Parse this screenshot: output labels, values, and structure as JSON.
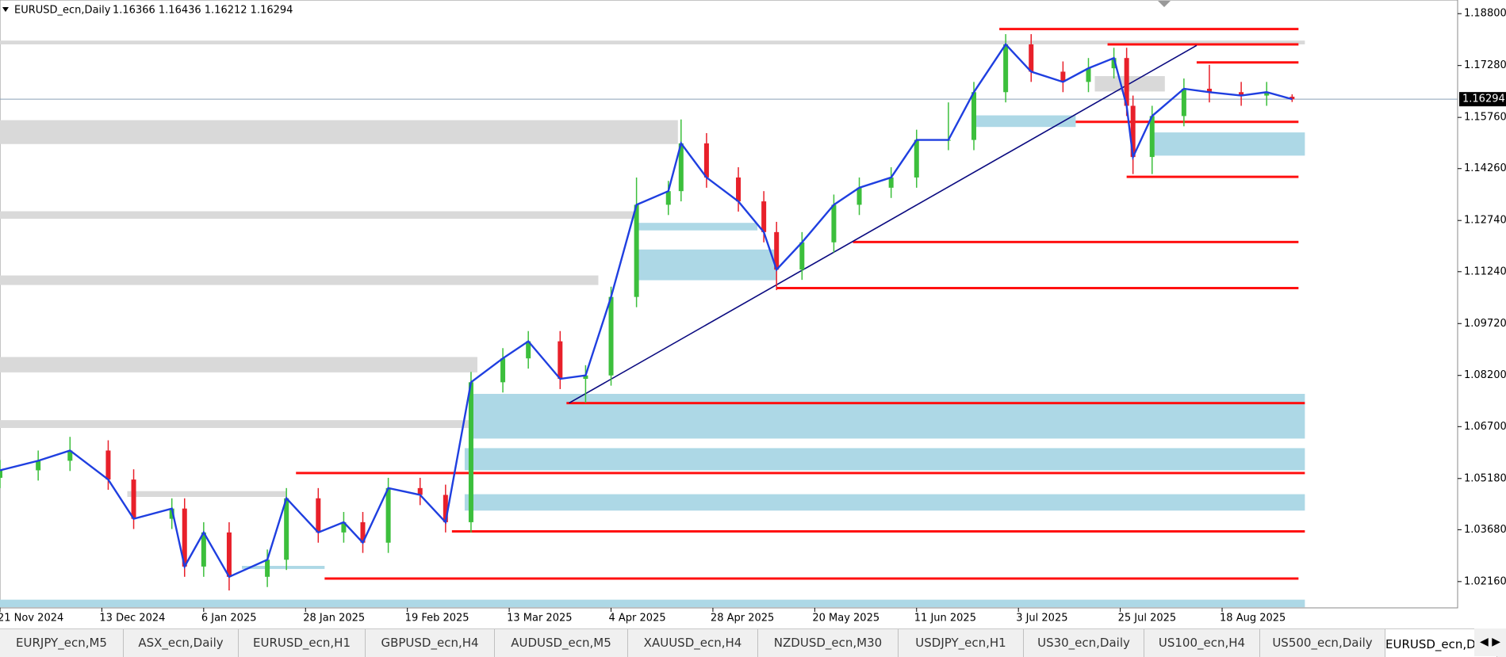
{
  "header": {
    "symbol": "EURUSD_ecn,Daily",
    "ohlc": "1.16366 1.16436 1.16212 1.16294"
  },
  "chart_data": {
    "type": "candlestick",
    "x": [
      0,
      6,
      11,
      17,
      21,
      27,
      29,
      32,
      36,
      42,
      45,
      50,
      54,
      57,
      61,
      66,
      70,
      74,
      79,
      83,
      88,
      92,
      96,
      100,
      105,
      107,
      111,
      116,
      120,
      122,
      126,
      131,
      135,
      140,
      144,
      149,
      153,
      158,
      162,
      167,
      171,
      175,
      177,
      178,
      181,
      186,
      190,
      195,
      199,
      203
    ],
    "open": [
      1.052,
      1.0542,
      1.057,
      1.06,
      1.0515,
      1.04,
      1.043,
      1.026,
      1.036,
      1.023,
      1.028,
      1.046,
      1.036,
      1.039,
      1.033,
      1.049,
      1.047,
      1.039,
      1.08,
      1.087,
      1.092,
      1.081,
      1.082,
      1.105,
      1.132,
      1.136,
      1.15,
      1.14,
      1.133,
      1.124,
      1.113,
      1.121,
      1.132,
      1.137,
      1.14,
      1.151,
      1.151,
      1.165,
      1.179,
      1.171,
      1.168,
      1.172,
      1.175,
      1.161,
      1.146,
      1.158,
      1.166,
      1.165,
      1.164,
      1.16366
    ],
    "high": [
      1.0572,
      1.06,
      1.064,
      1.063,
      1.0545,
      1.046,
      1.046,
      1.039,
      1.039,
      1.031,
      1.049,
      1.049,
      1.042,
      1.042,
      1.052,
      1.052,
      1.05,
      1.083,
      1.09,
      1.095,
      1.095,
      1.085,
      1.108,
      1.14,
      1.139,
      1.157,
      1.153,
      1.143,
      1.136,
      1.127,
      1.124,
      1.135,
      1.14,
      1.143,
      1.154,
      1.162,
      1.168,
      1.182,
      1.182,
      1.174,
      1.175,
      1.178,
      1.178,
      1.164,
      1.161,
      1.169,
      1.173,
      1.168,
      1.168,
      1.16436
    ],
    "low": [
      1.049,
      1.0512,
      1.054,
      1.0485,
      1.037,
      1.037,
      1.023,
      1.023,
      1.019,
      1.02,
      1.025,
      1.033,
      1.033,
      1.03,
      1.03,
      1.044,
      1.036,
      1.036,
      1.077,
      1.084,
      1.078,
      1.074,
      1.079,
      1.102,
      1.129,
      1.133,
      1.137,
      1.13,
      1.121,
      1.107,
      1.11,
      1.118,
      1.129,
      1.134,
      1.137,
      1.148,
      1.148,
      1.162,
      1.168,
      1.165,
      1.165,
      1.169,
      1.158,
      1.141,
      1.141,
      1.155,
      1.162,
      1.161,
      1.161,
      1.16212
    ],
    "close": [
      1.0542,
      1.057,
      1.06,
      1.0515,
      1.04,
      1.043,
      1.026,
      1.036,
      1.023,
      1.028,
      1.046,
      1.036,
      1.039,
      1.033,
      1.049,
      1.047,
      1.039,
      1.08,
      1.087,
      1.092,
      1.081,
      1.082,
      1.105,
      1.132,
      1.136,
      1.15,
      1.14,
      1.133,
      1.124,
      1.113,
      1.121,
      1.132,
      1.137,
      1.14,
      1.151,
      1.151,
      1.165,
      1.179,
      1.171,
      1.168,
      1.172,
      1.175,
      1.161,
      1.146,
      1.158,
      1.166,
      1.165,
      1.164,
      1.165,
      1.16294
    ],
    "up_color": "#3cbf3c",
    "down_color": "#e8202a",
    "line_color": "#1f3fe0",
    "xlim": [
      0,
      229
    ],
    "xticks": [
      {
        "value": 0,
        "label": "21 Nov 2024"
      },
      {
        "value": 16,
        "label": "13 Dec 2024"
      },
      {
        "value": 32,
        "label": "6 Jan 2025"
      },
      {
        "value": 48,
        "label": "28 Jan 2025"
      },
      {
        "value": 64,
        "label": "19 Feb 2025"
      },
      {
        "value": 80,
        "label": "13 Mar 2025"
      },
      {
        "value": 96,
        "label": "4 Apr 2025"
      },
      {
        "value": 112,
        "label": "28 Apr 2025"
      },
      {
        "value": 128,
        "label": "20 May 2025"
      },
      {
        "value": 144,
        "label": "11 Jun 2025"
      },
      {
        "value": 160,
        "label": "3 Jul 2025"
      },
      {
        "value": 176,
        "label": "25 Jul 2025"
      },
      {
        "value": 192,
        "label": "18 Aug 2025"
      }
    ],
    "ylim": [
      1.0139,
      1.192
    ],
    "yticks": [
      {
        "value": 1.188,
        "label": "1.18800"
      },
      {
        "value": 1.1728,
        "label": "1.17280"
      },
      {
        "value": 1.1576,
        "label": "1.15760"
      },
      {
        "value": 1.1426,
        "label": "1.14260"
      },
      {
        "value": 1.1274,
        "label": "1.12740"
      },
      {
        "value": 1.1124,
        "label": "1.11240"
      },
      {
        "value": 1.0972,
        "label": "1.09720"
      },
      {
        "value": 1.082,
        "label": "1.08200"
      },
      {
        "value": 1.067,
        "label": "1.06700"
      },
      {
        "value": 1.0518,
        "label": "1.05180"
      },
      {
        "value": 1.0368,
        "label": "1.03680"
      },
      {
        "value": 1.0216,
        "label": "1.02160"
      }
    ],
    "current_price": 1.16294,
    "levels": [
      {
        "price": 1.1835,
        "start": 157,
        "end": 204
      },
      {
        "price": 1.179,
        "start": 174,
        "end": 204
      },
      {
        "price": 1.1737,
        "start": 188,
        "end": 204
      },
      {
        "price": 1.1563,
        "start": 169,
        "end": 204
      },
      {
        "price": 1.1402,
        "start": 177,
        "end": 204
      },
      {
        "price": 1.1211,
        "start": 134,
        "end": 204
      },
      {
        "price": 1.1076,
        "start": 122,
        "end": 204
      },
      {
        "price": 1.0739,
        "start": 89,
        "end": 205
      },
      {
        "price": 1.0534,
        "start": 46.5,
        "end": 205
      },
      {
        "price": 1.0363,
        "start": 71,
        "end": 205
      },
      {
        "price": 1.0225,
        "start": 51,
        "end": 204
      }
    ],
    "level_color": "#ff1010",
    "demand_zones": [
      {
        "low": 1.0635,
        "high": 1.0766,
        "start": 74,
        "end": 205
      },
      {
        "low": 1.0542,
        "high": 1.0607,
        "start": 73,
        "end": 205
      },
      {
        "low": 1.0424,
        "high": 1.0472,
        "start": 73,
        "end": 205
      },
      {
        "low": 1.1099,
        "high": 1.1189,
        "start": 100,
        "end": 122
      },
      {
        "low": 1.1245,
        "high": 1.1267,
        "start": 100,
        "end": 119
      },
      {
        "low": 1.1464,
        "high": 1.1532,
        "start": 181,
        "end": 205
      },
      {
        "low": 1.1548,
        "high": 1.1582,
        "start": 153,
        "end": 169
      },
      {
        "low": 1.0253,
        "high": 1.0262,
        "start": 38,
        "end": 51
      },
      {
        "low": 1.0141,
        "high": 1.0163,
        "start": 0,
        "end": 205
      }
    ],
    "demand_color": "#add8e6",
    "supply_zones": [
      {
        "low": 1.1498,
        "high": 1.1568,
        "start": 0,
        "end": 106.5
      },
      {
        "low": 1.1279,
        "high": 1.1301,
        "start": 0,
        "end": 100
      },
      {
        "low": 1.1085,
        "high": 1.1113,
        "start": 0,
        "end": 94
      },
      {
        "low": 1.0829,
        "high": 1.0874,
        "start": 0,
        "end": 75
      },
      {
        "low": 1.0666,
        "high": 1.0689,
        "start": 0,
        "end": 74
      },
      {
        "low": 1.179,
        "high": 1.1801,
        "start": 0,
        "end": 205
      },
      {
        "low": 1.0464,
        "high": 1.0481,
        "start": 20,
        "end": 45
      },
      {
        "low": 1.1652,
        "high": 1.1697,
        "start": 172,
        "end": 183
      }
    ],
    "supply_color": "#d9d9d9",
    "trendline": {
      "x": [
        89.4,
        188
      ],
      "y": [
        1.0739,
        1.1787
      ],
      "color": "#0a0a80"
    }
  },
  "tabs": [
    "EURJPY_ecn,M5",
    "ASX_ecn,Daily",
    "EURUSD_ecn,H1",
    "GBPUSD_ecn,H4",
    "AUDUSD_ecn,M5",
    "XAUUSD_ecn,H4",
    "NZDUSD_ecn,M30",
    "USDJPY_ecn,H1",
    "US30_ecn,Daily",
    "US100_ecn,H4",
    "US500_ecn,Daily",
    "EURUSD_ecn,Daily"
  ]
}
